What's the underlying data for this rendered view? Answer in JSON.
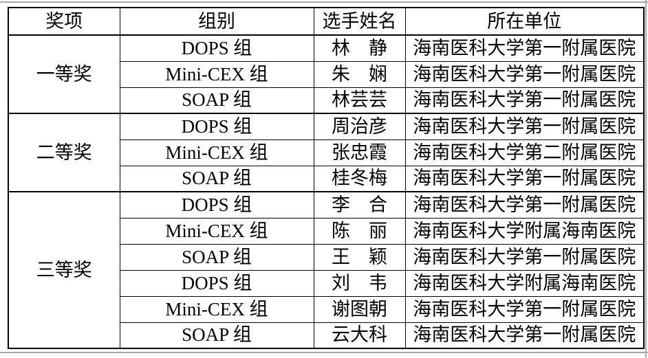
{
  "page": {
    "background_color": "#ffffff",
    "edge_line_color": "#a9a9a9"
  },
  "table": {
    "border_color": "#000000",
    "headers": {
      "award": "奖项",
      "group": "组别",
      "name": "选手姓名",
      "organization": "所在单位"
    },
    "award_groups": [
      {
        "award": "一等奖",
        "rows": [
          {
            "group": "DOPS 组",
            "name": "林　静",
            "organization": "海南医科大学第一附属医院"
          },
          {
            "group": "Mini-CEX 组",
            "name": "朱　娴",
            "organization": "海南医科大学第一附属医院"
          },
          {
            "group": "SOAP 组",
            "name": "林芸芸",
            "organization": "海南医科大学第一附属医院"
          }
        ]
      },
      {
        "award": "二等奖",
        "rows": [
          {
            "group": "DOPS 组",
            "name": "周治彦",
            "organization": "海南医科大学第一附属医院"
          },
          {
            "group": "Mini-CEX 组",
            "name": "张忠霞",
            "organization": "海南医科大学第二附属医院"
          },
          {
            "group": "SOAP 组",
            "name": "桂冬梅",
            "organization": "海南医科大学第一附属医院"
          }
        ]
      },
      {
        "award": "三等奖",
        "rows": [
          {
            "group": "DOPS 组",
            "name": "李　合",
            "organization": "海南医科大学第一附属医院"
          },
          {
            "group": "Mini-CEX 组",
            "name": "陈　丽",
            "organization": "海南医科大学附属海南医院"
          },
          {
            "group": "SOAP 组",
            "name": "王　颖",
            "organization": "海南医科大学第一附属医院"
          },
          {
            "group": "DOPS 组",
            "name": "刘　韦",
            "organization": "海南医科大学附属海南医院"
          },
          {
            "group": "Mini-CEX 组",
            "name": "谢图朝",
            "organization": "海南医科大学第一附属医院"
          },
          {
            "group": "SOAP 组",
            "name": "云大科",
            "organization": "海南医科大学第一附属医院"
          }
        ]
      }
    ]
  }
}
